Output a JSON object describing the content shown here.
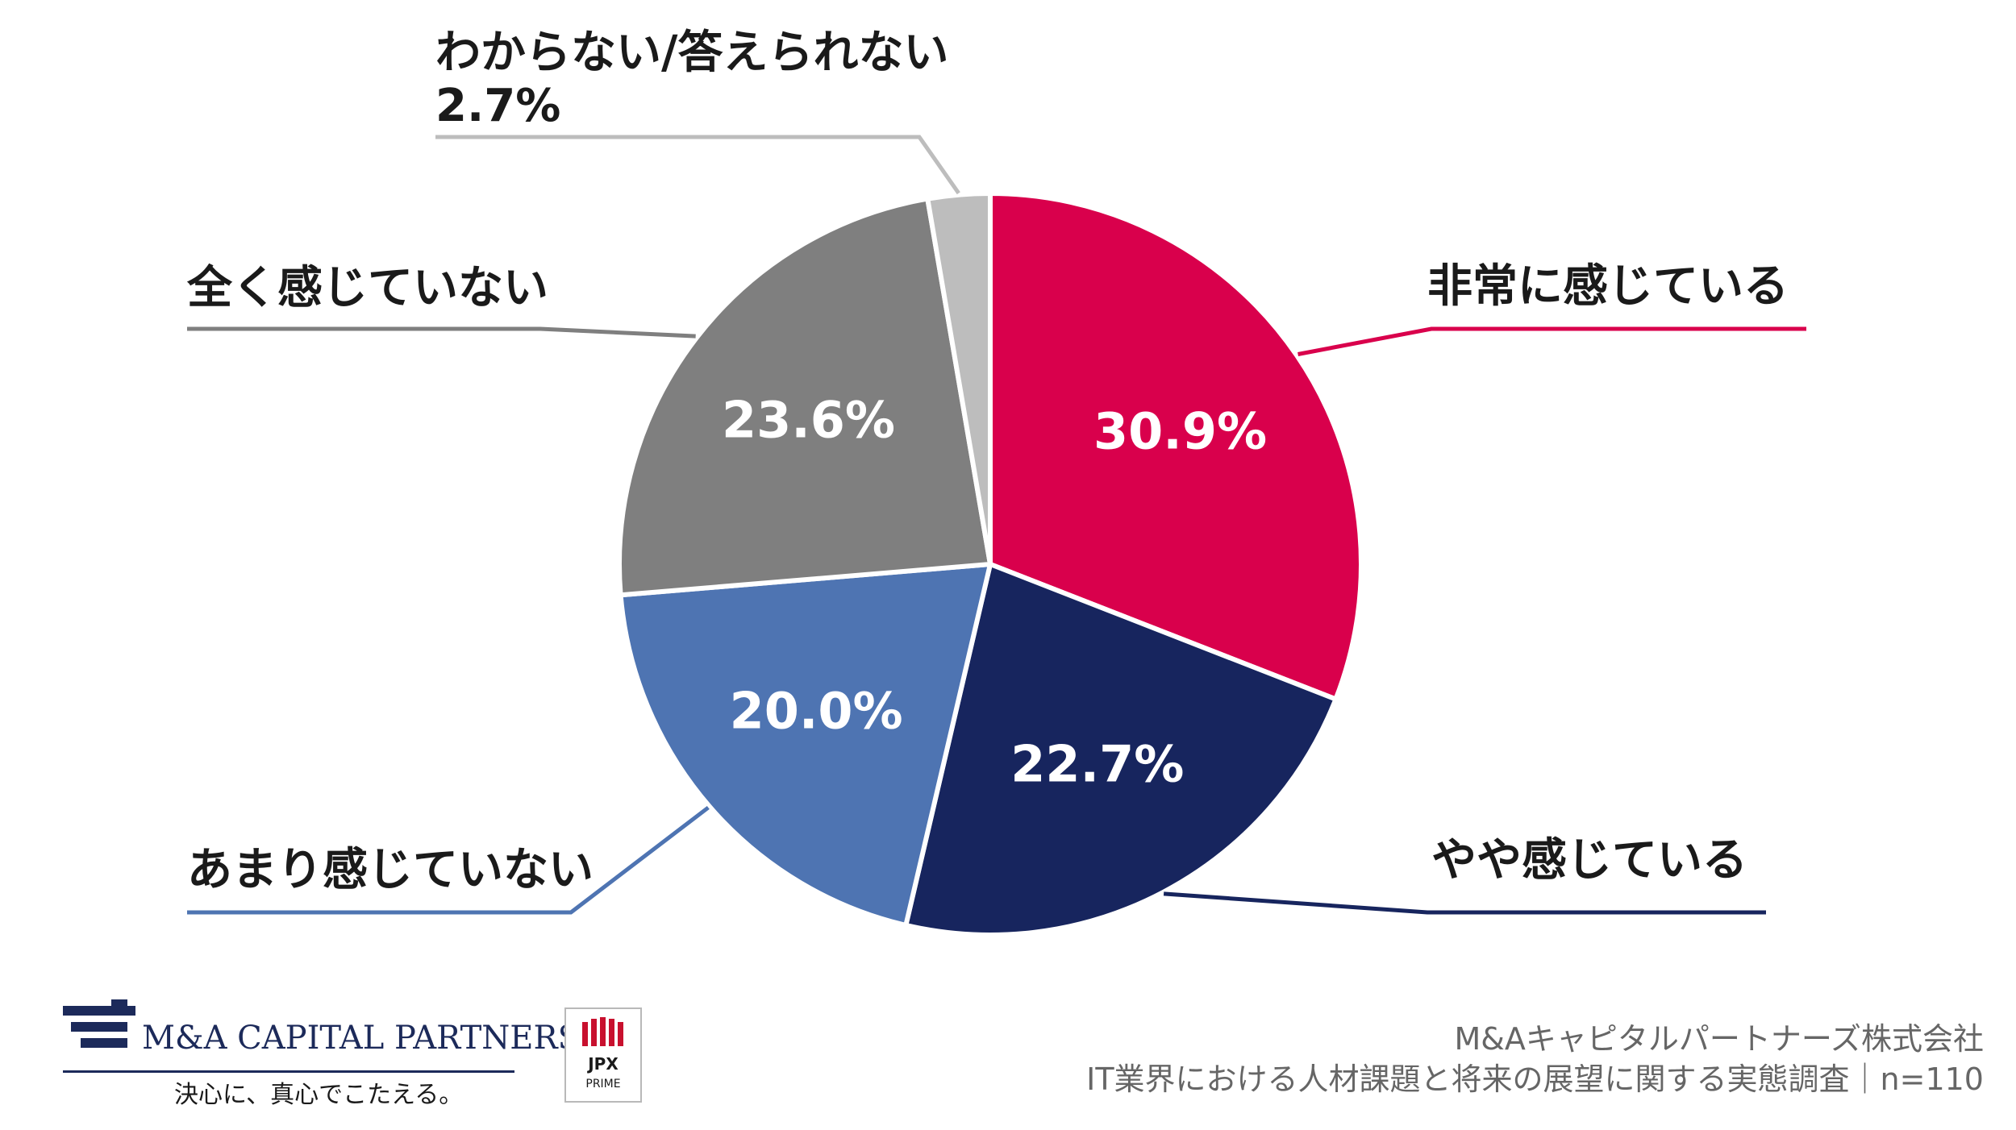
{
  "chart_data": {
    "type": "pie",
    "slices": [
      {
        "label": "非常に感じている",
        "value": 30.9,
        "display": "30.9%",
        "color": "#d9004c"
      },
      {
        "label": "やや感じている",
        "value": 22.7,
        "display": "22.7%",
        "color": "#17255e"
      },
      {
        "label": "あまり感じていない",
        "value": 20.0,
        "display": "20.0%",
        "color": "#4e74b2"
      },
      {
        "label": "全く感じていない",
        "value": 23.6,
        "display": "23.6%",
        "color": "#7f7f7f"
      },
      {
        "label": "わからない/答えられない",
        "value": 2.7,
        "display": "2.7%",
        "color": "#bdbdbd"
      }
    ]
  },
  "branding": {
    "company_logo": "M&A CAPITAL PARTNERS",
    "tagline": "決心に、真心でこたえる。",
    "jpx_top": "JPX",
    "jpx_bottom": "PRIME"
  },
  "footer": {
    "company": "M&Aキャピタルパートナーズ株式会社",
    "survey": "IT業界における人材課題と将来の展望に関する実態調査｜n=110"
  }
}
